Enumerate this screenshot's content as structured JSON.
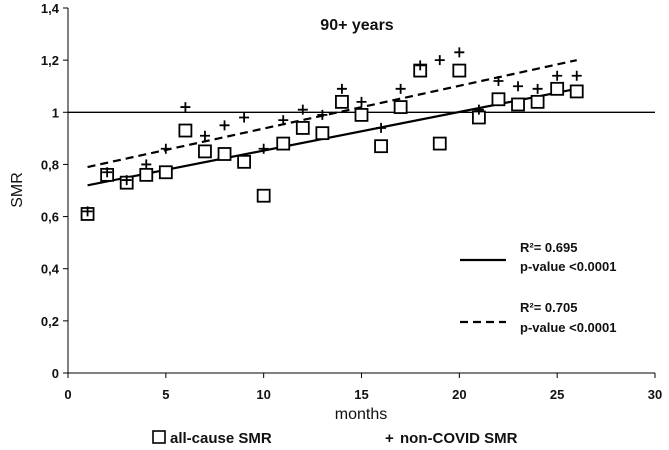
{
  "chart_data": {
    "type": "scatter",
    "title": "90+ years",
    "xlabel": "months",
    "ylabel": "SMR",
    "xlim": [
      0,
      30
    ],
    "ylim": [
      0,
      1.4
    ],
    "x_ticks": [
      0,
      5,
      10,
      15,
      20,
      25,
      30
    ],
    "y_ticks": [
      0,
      0.2,
      0.4,
      0.6,
      0.8,
      1.0,
      1.2,
      1.4
    ],
    "x_tick_labels": [
      "0",
      "5",
      "10",
      "15",
      "20",
      "25",
      "30"
    ],
    "y_tick_labels": [
      "0",
      "0,2",
      "0,4",
      "0,6",
      "0,8",
      "1",
      "1,2",
      "1,4"
    ],
    "reference_line_y": 1.0,
    "series": [
      {
        "name": "all-cause SMR",
        "marker": "square",
        "x": [
          1,
          2,
          3,
          4,
          5,
          6,
          7,
          8,
          9,
          10,
          11,
          12,
          13,
          14,
          15,
          16,
          17,
          18,
          19,
          20,
          21,
          22,
          23,
          24,
          25,
          26
        ],
        "values": [
          0.61,
          0.76,
          0.73,
          0.76,
          0.77,
          0.93,
          0.85,
          0.84,
          0.81,
          0.68,
          0.88,
          0.94,
          0.92,
          1.04,
          0.99,
          0.87,
          1.02,
          1.16,
          0.88,
          1.16,
          0.98,
          1.05,
          1.03,
          1.04,
          1.09,
          1.08
        ]
      },
      {
        "name": "non-COVID SMR",
        "marker": "plus",
        "x": [
          1,
          2,
          3,
          4,
          5,
          6,
          7,
          8,
          9,
          10,
          11,
          12,
          13,
          14,
          15,
          16,
          17,
          18,
          19,
          20,
          21,
          22,
          23,
          24,
          25,
          26
        ],
        "values": [
          0.62,
          0.77,
          0.74,
          0.8,
          0.86,
          1.02,
          0.91,
          0.95,
          0.98,
          0.86,
          0.97,
          1.01,
          0.99,
          1.09,
          1.04,
          0.94,
          1.09,
          1.18,
          1.2,
          1.23,
          1.01,
          1.12,
          1.1,
          1.09,
          1.14,
          1.14
        ]
      }
    ],
    "trendlines": [
      {
        "series": "all-cause SMR",
        "style": "solid",
        "x": [
          1,
          26
        ],
        "y": [
          0.72,
          1.09
        ],
        "r2_label": "R²= 0.695",
        "p_label": "p-value <0.0001"
      },
      {
        "series": "non-COVID SMR",
        "style": "dashed",
        "x": [
          1,
          26
        ],
        "y": [
          0.79,
          1.2
        ],
        "r2_label": "R²= 0.705",
        "p_label": "p-value <0.0001"
      }
    ],
    "legend": {
      "position": "bottom",
      "items": [
        {
          "symbol": "☐",
          "label": "all-cause SMR"
        },
        {
          "symbol": "+",
          "label": "non-COVID SMR"
        }
      ]
    }
  }
}
